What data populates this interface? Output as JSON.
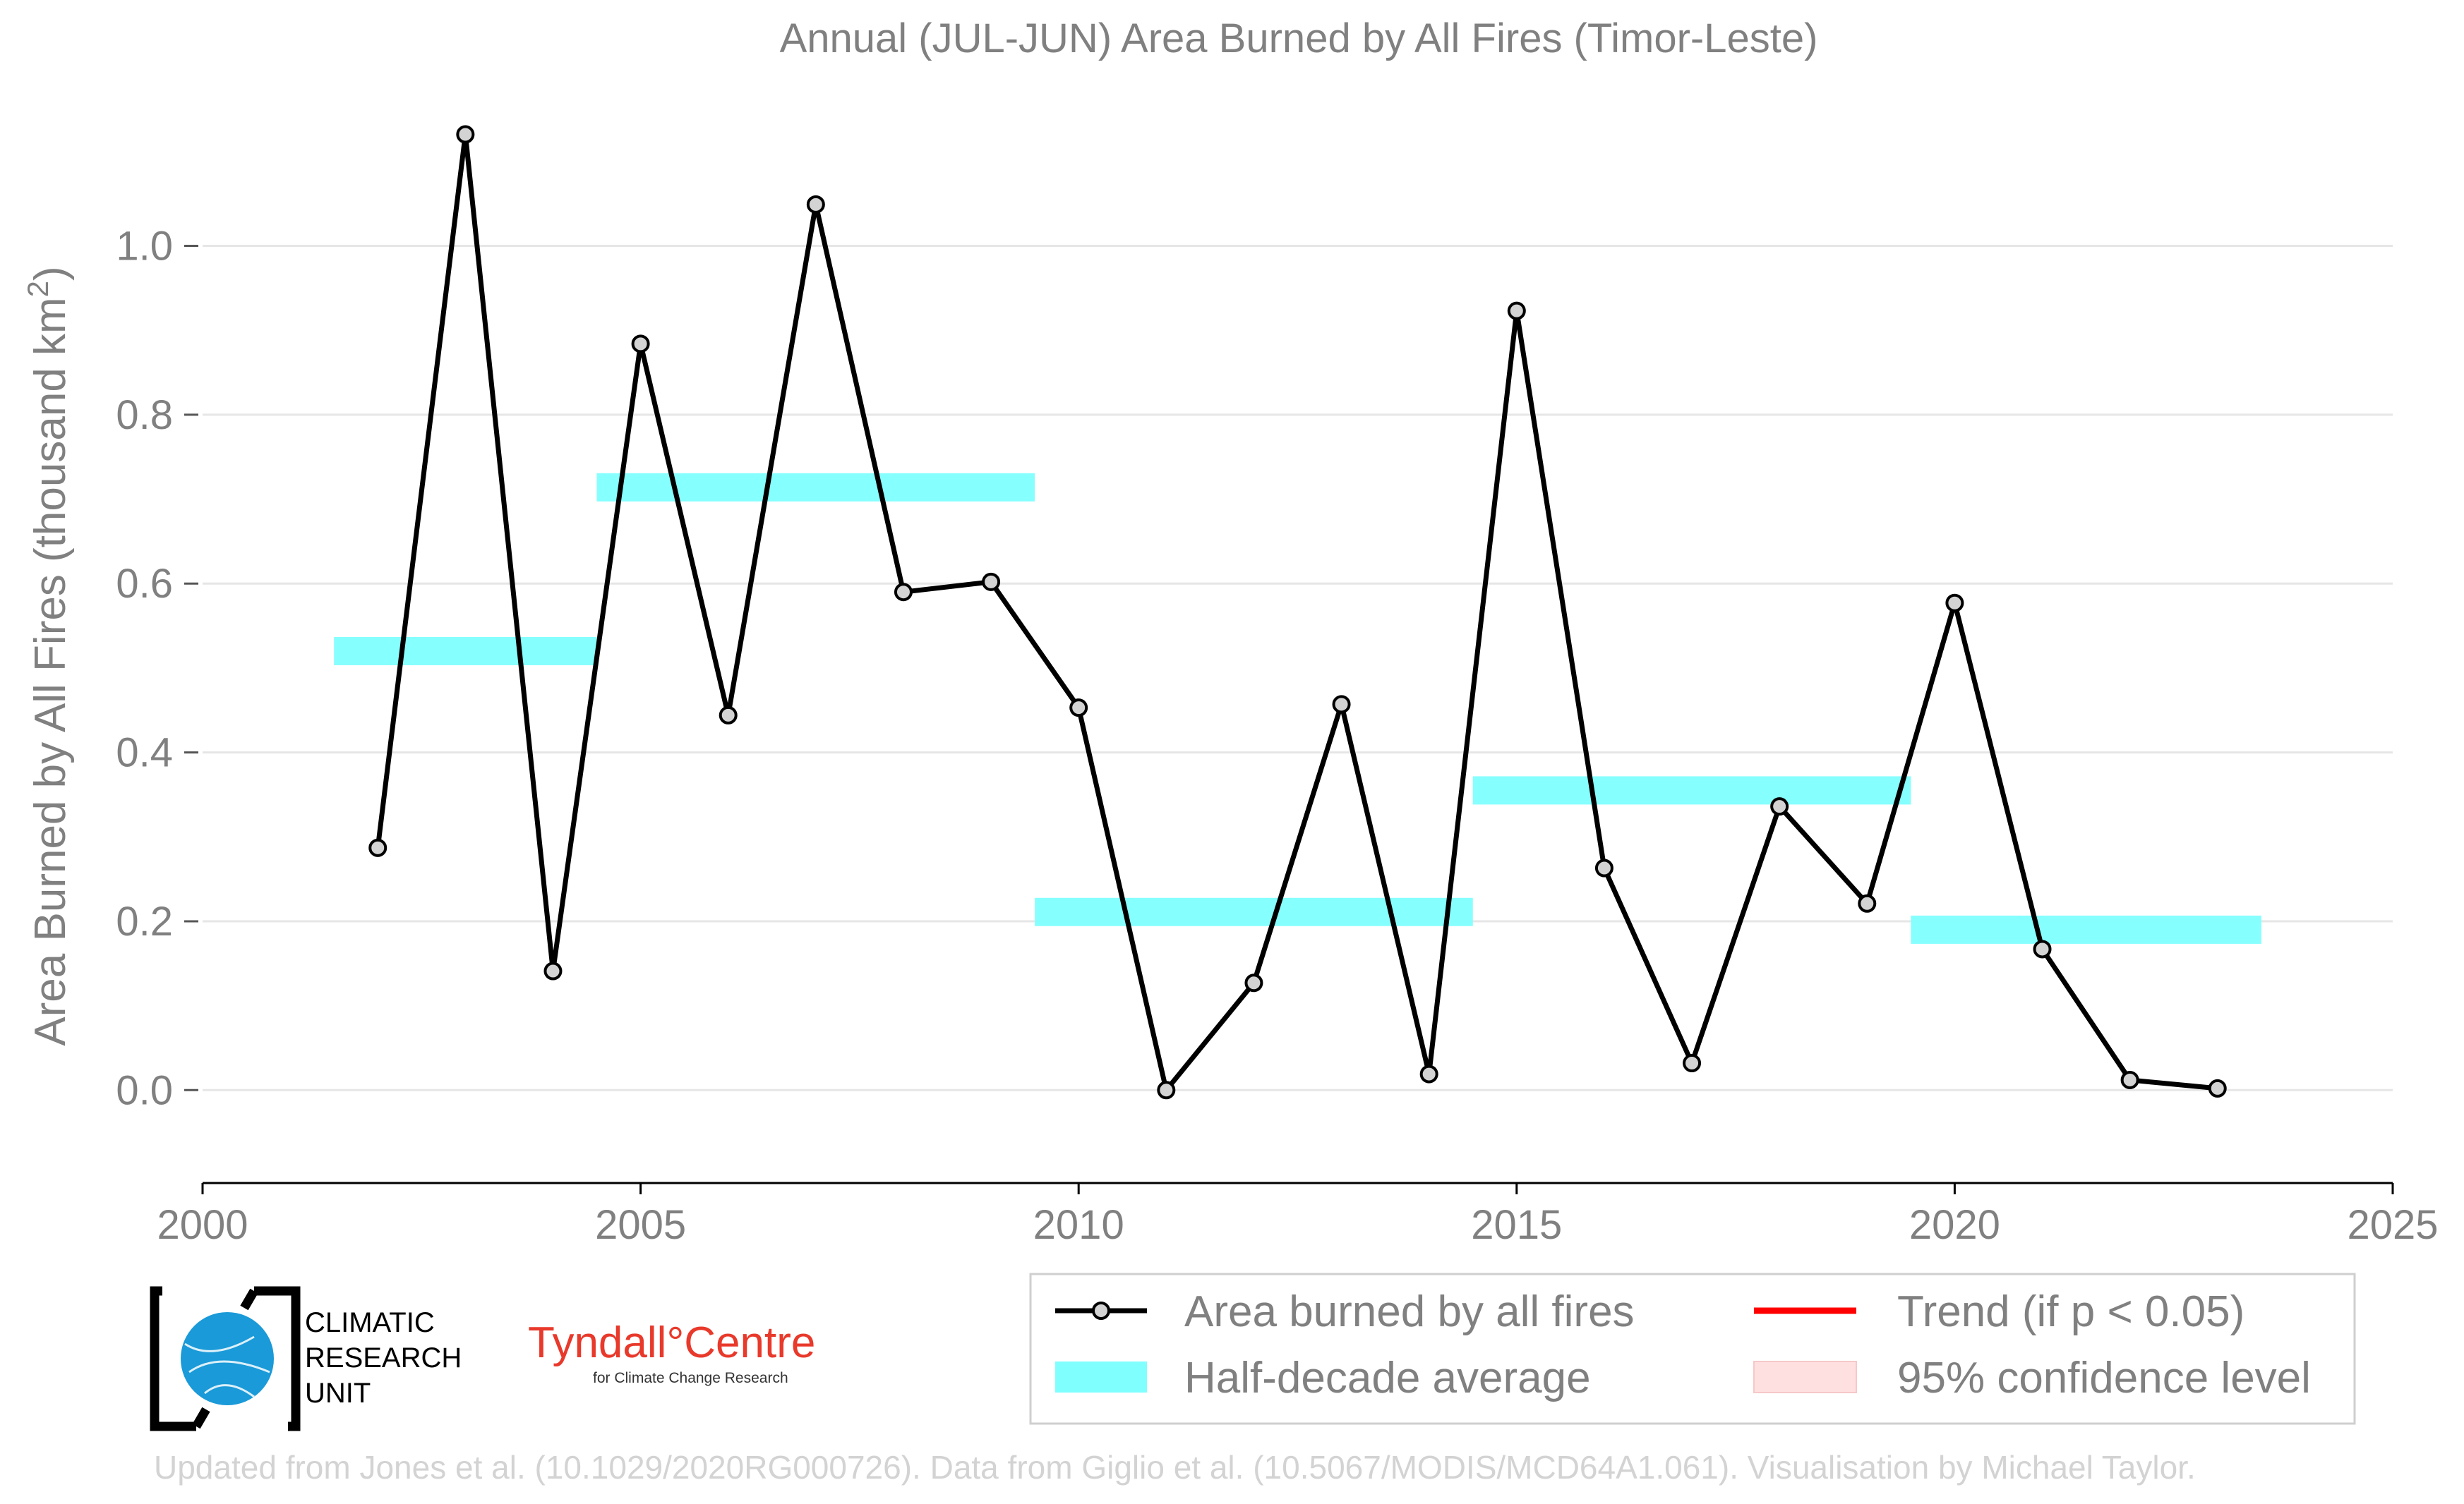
{
  "chart_data": {
    "type": "line",
    "title": "Annual (JUL-JUN) Area Burned by All Fires (Timor-Leste)",
    "ylabel": "Area Burned by All Fires (thousand km²)",
    "xlabel": "",
    "xlim": [
      2000,
      2025
    ],
    "ylim": [
      -0.095,
      1.155
    ],
    "x_ticks": [
      2000,
      2005,
      2010,
      2015,
      2020,
      2025
    ],
    "y_ticks": [
      0.0,
      0.2,
      0.4,
      0.6,
      0.8,
      1.0
    ],
    "x_tick_labels": [
      "2000",
      "2005",
      "2010",
      "2015",
      "2020",
      "2025"
    ],
    "y_tick_labels": [
      "0.0",
      "0.2",
      "0.4",
      "0.6",
      "0.8",
      "1.0"
    ],
    "grid": "horizontal",
    "series": [
      {
        "name": "Area burned by all fires",
        "color": "#000000",
        "marker_fill": "#d3d3d3",
        "x": [
          2002,
          2003,
          2004,
          2005,
          2006,
          2007,
          2008,
          2009,
          2010,
          2011,
          2012,
          2013,
          2014,
          2015,
          2016,
          2017,
          2018,
          2019,
          2020,
          2021,
          2022,
          2023
        ],
        "y": [
          0.287,
          1.132,
          0.141,
          0.884,
          0.444,
          1.049,
          0.59,
          0.602,
          0.453,
          0.0,
          0.127,
          0.457,
          0.019,
          0.923,
          0.263,
          0.032,
          0.336,
          0.221,
          0.577,
          0.167,
          0.012,
          0.002
        ]
      }
    ],
    "half_decade_average": {
      "name": "Half-decade average",
      "color": "#80ffff",
      "segments": [
        {
          "x_start": 2001.5,
          "x_end": 2004.5,
          "value": 0.52
        },
        {
          "x_start": 2004.5,
          "x_end": 2009.5,
          "value": 0.714
        },
        {
          "x_start": 2009.5,
          "x_end": 2014.5,
          "value": 0.211
        },
        {
          "x_start": 2014.5,
          "x_end": 2019.5,
          "value": 0.355
        },
        {
          "x_start": 2019.5,
          "x_end": 2023.5,
          "value": 0.19
        }
      ]
    },
    "legend": {
      "placement": "bottom-right",
      "entries": [
        {
          "label": "Area burned by all fires",
          "kind": "line-marker",
          "color": "#000000"
        },
        {
          "label": "Trend (if p < 0.05)",
          "kind": "line",
          "color": "#ff0000"
        },
        {
          "label": "Half-decade average",
          "kind": "band",
          "color": "#80ffff"
        },
        {
          "label": "95% confidence level",
          "kind": "band",
          "color": "#ffe0e0"
        }
      ]
    }
  },
  "footer": {
    "credit": "Updated from Jones et al. (10.1029/2020RG000726). Data from Giglio et al. (10.5067/MODIS/MCD64A1.061). Visualisation by Michael Taylor.",
    "cru_logo_lines": [
      "CLIMATIC",
      "RESEARCH",
      "UNIT"
    ],
    "tyndall_name": "Tyndall°Centre",
    "tyndall_subtitle": "for Climate Change Research"
  }
}
